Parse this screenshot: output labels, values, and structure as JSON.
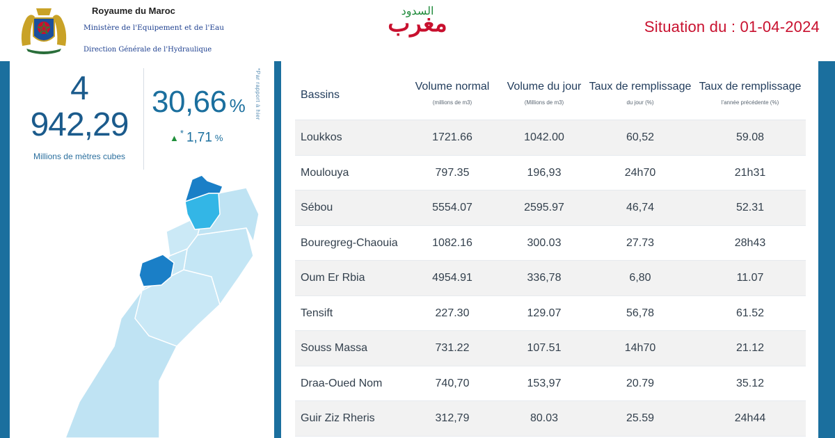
{
  "header": {
    "gov_line1": "Royaume du Maroc",
    "gov_line2": "Ministère de l'Equipement et de l'Eau",
    "gov_line3": "Direction Générale de l'Hydraulique",
    "brand_main": "مغرب",
    "brand_sub": "السدود",
    "situation": "Situation du : 01-04-2024"
  },
  "stats": {
    "volume_line1": "4",
    "volume_line2": "942,29",
    "volume_unit": "Millions de mètres cubes",
    "fill_rate": "30,66",
    "fill_rate_symbol": "%",
    "delta_star": "*",
    "delta_value": "1,71",
    "delta_symbol": "%",
    "side_note": "*Par rapport à hier"
  },
  "colors": {
    "accent": "#1b6f9e",
    "highlight_red": "#c8102e",
    "map_light": "#bfe3f3",
    "map_mid": "#33b6e6",
    "map_dark": "#1a7fc7"
  },
  "table": {
    "headers": {
      "bassins": "Bassins",
      "col1": "Volume normal",
      "col1_sub": "(millions de m3)",
      "col2": "Volume du jour",
      "col2_sub": "(Millions de m3)",
      "col3": "Taux de remplissage",
      "col3_sub": "du jour (%)",
      "col4": "Taux de remplissage",
      "col4_sub": "l'année précédente (%)"
    },
    "rows": [
      {
        "name": "Loukkos",
        "normal": "1721.66",
        "jour": "1042.00",
        "taux_jour": "60,52",
        "taux_prec": "59.08"
      },
      {
        "name": "Moulouya",
        "normal": "797.35",
        "jour": "196,93",
        "taux_jour": "24h70",
        "taux_prec": "21h31"
      },
      {
        "name": "Sébou",
        "normal": "5554.07",
        "jour": "2595.97",
        "taux_jour": "46,74",
        "taux_prec": "52.31"
      },
      {
        "name": "Bouregreg-Chaouia",
        "normal": "1082.16",
        "jour": "300.03",
        "taux_jour": "27.73",
        "taux_prec": "28h43"
      },
      {
        "name": "Oum Er Rbia",
        "normal": "4954.91",
        "jour": "336,78",
        "taux_jour": "6,80",
        "taux_prec": "11.07"
      },
      {
        "name": "Tensift",
        "normal": "227.30",
        "jour": "129.07",
        "taux_jour": "56,78",
        "taux_prec": "61.52"
      },
      {
        "name": "Souss Massa",
        "normal": "731.22",
        "jour": "107.51",
        "taux_jour": "14h70",
        "taux_prec": "21.12"
      },
      {
        "name": "Draa-Oued Nom",
        "normal": "740,70",
        "jour": "153,97",
        "taux_jour": "20.79",
        "taux_prec": "35.12"
      },
      {
        "name": "Guir Ziz Rheris",
        "normal": "312,79",
        "jour": "80.03",
        "taux_jour": "25.59",
        "taux_prec": "24h44"
      }
    ]
  }
}
